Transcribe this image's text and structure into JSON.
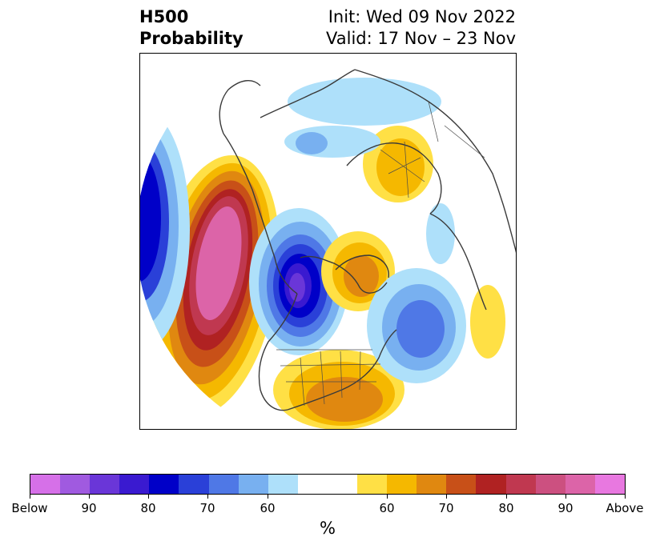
{
  "title": {
    "line1": "H500",
    "line2": "Probability",
    "init": "Init: Wed 09 Nov 2022",
    "valid": "Valid: 17 Nov – 23 Nov"
  },
  "map": {
    "projection": "polar stereographic, north pole",
    "field": "500 hPa height probability",
    "anomalies": [
      {
        "region": "Northeast Pacific / Gulf of Alaska",
        "category": "above",
        "max_probability": "Above"
      },
      {
        "region": "North Pacific (Aleutians / Bering)",
        "category": "below",
        "max_probability": 80
      },
      {
        "region": "Central / Western Canada",
        "category": "below",
        "max_probability": 90
      },
      {
        "region": "Greenland",
        "category": "above",
        "max_probability": 70
      },
      {
        "region": "Southeastern United States",
        "category": "above",
        "max_probability": 70
      },
      {
        "region": "North Atlantic",
        "category": "below",
        "max_probability": 70
      },
      {
        "region": "Northern Europe / Scandinavia",
        "category": "above",
        "max_probability": 60
      },
      {
        "region": "Arctic Siberia / Kara Sea",
        "category": "below",
        "max_probability": 60
      },
      {
        "region": "Eastern Atlantic / Iberia",
        "category": "above",
        "max_probability": 50
      }
    ]
  },
  "colorbar": {
    "unit": "%",
    "tick_labels": [
      "Below",
      "90",
      "80",
      "70",
      "60",
      "60",
      "70",
      "80",
      "90",
      "Above"
    ],
    "colors": [
      "#d670e8",
      "#a05ae0",
      "#6a36d8",
      "#3a1ad0",
      "#0000c8",
      "#2a40d8",
      "#4f78e6",
      "#78b0f0",
      "#aee0fa",
      "#ffffff",
      "#ffffff",
      "#ffe045",
      "#f5b800",
      "#e08810",
      "#c85018",
      "#b02222",
      "#c03850",
      "#cc5080",
      "#dc64a8",
      "#e878e0"
    ]
  }
}
